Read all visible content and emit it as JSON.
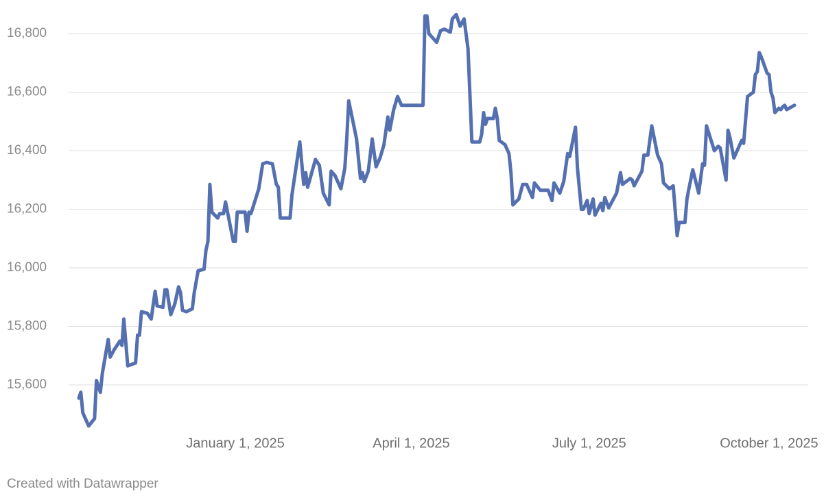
{
  "chart_data": {
    "type": "line",
    "x": [
      "2024-10-13",
      "2024-10-14",
      "2024-10-15",
      "2024-10-18",
      "2024-10-21",
      "2024-10-22",
      "2024-10-24",
      "2024-10-25",
      "2024-10-28",
      "2024-10-29",
      "2024-10-31",
      "2024-11-03",
      "2024-11-04",
      "2024-11-05",
      "2024-11-07",
      "2024-11-11",
      "2024-11-12",
      "2024-11-13",
      "2024-11-14",
      "2024-11-17",
      "2024-11-19",
      "2024-11-21",
      "2024-11-22",
      "2024-11-25",
      "2024-11-26",
      "2024-11-27",
      "2024-11-29",
      "2024-12-01",
      "2024-12-03",
      "2024-12-04",
      "2024-12-05",
      "2024-12-07",
      "2024-12-10",
      "2024-12-11",
      "2024-12-13",
      "2024-12-16",
      "2024-12-17",
      "2024-12-18",
      "2024-12-19",
      "2024-12-20",
      "2024-12-23",
      "2024-12-24",
      "2024-12-26",
      "2024-12-27",
      "2024-12-31",
      "2025-01-01",
      "2025-01-02",
      "2025-01-06",
      "2025-01-07",
      "2025-01-08",
      "2025-01-09",
      "2025-01-13",
      "2025-01-15",
      "2025-01-17",
      "2025-01-20",
      "2025-01-22",
      "2025-01-23",
      "2025-01-24",
      "2025-01-29",
      "2025-01-30",
      "2025-02-03",
      "2025-02-05",
      "2025-02-06",
      "2025-02-07",
      "2025-02-11",
      "2025-02-13",
      "2025-02-15",
      "2025-02-18",
      "2025-02-19",
      "2025-02-21",
      "2025-02-24",
      "2025-02-26",
      "2025-02-27",
      "2025-02-28",
      "2025-03-04",
      "2025-03-06",
      "2025-03-07",
      "2025-03-08",
      "2025-03-10",
      "2025-03-12",
      "2025-03-14",
      "2025-03-16",
      "2025-03-18",
      "2025-03-20",
      "2025-03-21",
      "2025-03-23",
      "2025-03-25",
      "2025-03-27",
      "2025-04-07",
      "2025-04-08",
      "2025-04-09",
      "2025-04-10",
      "2025-04-14",
      "2025-04-16",
      "2025-04-18",
      "2025-04-21",
      "2025-04-22",
      "2025-04-24",
      "2025-04-26",
      "2025-04-28",
      "2025-04-30",
      "2025-05-01",
      "2025-05-02",
      "2025-05-06",
      "2025-05-07",
      "2025-05-08",
      "2025-05-09",
      "2025-05-10",
      "2025-05-13",
      "2025-05-14",
      "2025-05-15",
      "2025-05-16",
      "2025-05-19",
      "2025-05-21",
      "2025-05-22",
      "2025-05-23",
      "2025-05-26",
      "2025-05-28",
      "2025-05-30",
      "2025-06-02",
      "2025-06-03",
      "2025-06-06",
      "2025-06-10",
      "2025-06-12",
      "2025-06-13",
      "2025-06-16",
      "2025-06-18",
      "2025-06-20",
      "2025-06-21",
      "2025-06-24",
      "2025-06-25",
      "2025-06-27",
      "2025-06-28",
      "2025-06-30",
      "2025-07-01",
      "2025-07-03",
      "2025-07-04",
      "2025-07-07",
      "2025-07-08",
      "2025-07-09",
      "2025-07-11",
      "2025-07-15",
      "2025-07-17",
      "2025-07-18",
      "2025-07-22",
      "2025-07-23",
      "2025-07-24",
      "2025-07-26",
      "2025-07-28",
      "2025-07-29",
      "2025-07-31",
      "2025-08-02",
      "2025-08-05",
      "2025-08-07",
      "2025-08-08",
      "2025-08-11",
      "2025-08-13",
      "2025-08-15",
      "2025-08-16",
      "2025-08-19",
      "2025-08-20",
      "2025-08-21",
      "2025-08-23",
      "2025-08-26",
      "2025-08-28",
      "2025-08-29",
      "2025-08-30",
      "2025-09-03",
      "2025-09-05",
      "2025-09-06",
      "2025-09-09",
      "2025-09-10",
      "2025-09-11",
      "2025-09-13",
      "2025-09-15",
      "2025-09-17",
      "2025-09-18",
      "2025-09-20",
      "2025-09-23",
      "2025-09-24",
      "2025-09-25",
      "2025-09-26",
      "2025-09-27",
      "2025-09-30",
      "2025-10-01",
      "2025-10-02",
      "2025-10-03",
      "2025-10-04",
      "2025-10-06",
      "2025-10-07",
      "2025-10-08",
      "2025-10-09",
      "2025-10-10",
      "2025-10-14"
    ],
    "series": [
      {
        "color": "#5470b0",
        "values": [
          15555,
          15575,
          15505,
          15460,
          15485,
          15615,
          15575,
          15640,
          15755,
          15695,
          15720,
          15750,
          15735,
          15825,
          15665,
          15675,
          15770,
          15770,
          15850,
          15845,
          15825,
          15920,
          15870,
          15865,
          15925,
          15925,
          15840,
          15875,
          15935,
          15915,
          15855,
          15850,
          15860,
          15915,
          15990,
          15995,
          16060,
          16090,
          16285,
          16190,
          16170,
          16185,
          16185,
          16225,
          16090,
          16090,
          16190,
          16190,
          16125,
          16190,
          16185,
          16270,
          16355,
          16360,
          16355,
          16285,
          16275,
          16170,
          16170,
          16250,
          16430,
          16285,
          16325,
          16275,
          16370,
          16350,
          16255,
          16215,
          16330,
          16315,
          16270,
          16340,
          16440,
          16570,
          16440,
          16305,
          16325,
          16295,
          16330,
          16440,
          16345,
          16375,
          16420,
          16515,
          16470,
          16540,
          16585,
          16555,
          16555,
          16860,
          16860,
          16800,
          16770,
          16810,
          16815,
          16805,
          16850,
          16865,
          16825,
          16850,
          16750,
          16595,
          16430,
          16430,
          16455,
          16530,
          16490,
          16510,
          16510,
          16545,
          16510,
          16435,
          16420,
          16390,
          16325,
          16215,
          16235,
          16285,
          16285,
          16240,
          16290,
          16265,
          16265,
          16230,
          16290,
          16255,
          16295,
          16390,
          16380,
          16480,
          16340,
          16200,
          16200,
          16230,
          16185,
          16235,
          16180,
          16220,
          16195,
          16240,
          16205,
          16255,
          16325,
          16285,
          16305,
          16300,
          16280,
          16305,
          16330,
          16385,
          16385,
          16485,
          16385,
          16355,
          16290,
          16270,
          16280,
          16110,
          16155,
          16155,
          16235,
          16270,
          16335,
          16255,
          16355,
          16350,
          16485,
          16400,
          16415,
          16410,
          16300,
          16470,
          16445,
          16375,
          16405,
          16435,
          16425,
          16585,
          16600,
          16660,
          16670,
          16735,
          16720,
          16665,
          16660,
          16600,
          16580,
          16530,
          16545,
          16540,
          16550,
          16555,
          16540,
          16555
        ]
      }
    ],
    "xlim": [
      "2024-10-13",
      "2025-10-14"
    ],
    "xticks": [
      {
        "value": "2025-01-01",
        "label": "January 1, 2025"
      },
      {
        "value": "2025-04-01",
        "label": "April 1, 2025"
      },
      {
        "value": "2025-07-01",
        "label": "July 1, 2025"
      },
      {
        "value": "2025-10-01",
        "label": "October 1, 2025"
      }
    ],
    "ylim": [
      15600,
      16800
    ],
    "yticks": [
      {
        "value": 15600,
        "label": "15,600"
      },
      {
        "value": 15800,
        "label": "15,800"
      },
      {
        "value": 16000,
        "label": "16,000"
      },
      {
        "value": 16200,
        "label": "16,200"
      },
      {
        "value": 16400,
        "label": "16,400"
      },
      {
        "value": 16600,
        "label": "16,600"
      },
      {
        "value": 16800,
        "label": "16,800"
      }
    ],
    "grid": true
  },
  "footer": {
    "credit": "Created with Datawrapper"
  }
}
